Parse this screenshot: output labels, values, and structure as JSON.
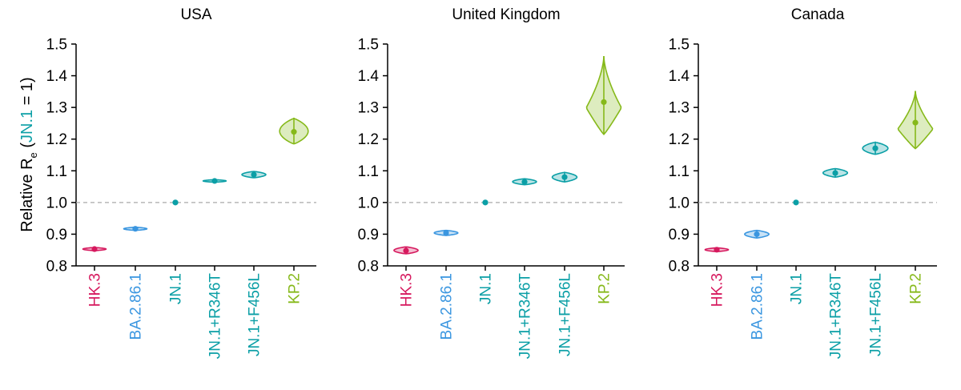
{
  "figure": {
    "ylabel_prefix": "Relative R",
    "ylabel_sub": "e",
    "ylabel_open": " (",
    "ylabel_ref": "JN.1",
    "ylabel_close": " = 1)"
  },
  "colors": {
    "HK.3": "#d6195e",
    "BA.2.86.1": "#3a96e0",
    "JN.1": "#0b9fa6",
    "JN.1+R346T": "#0b9fa6",
    "JN.1+F456L": "#0b9fa6",
    "KP.2": "#86b91a",
    "reference_line": "#aaaaaa",
    "axis": "#000000"
  },
  "chart_data": [
    {
      "type": "violin",
      "title": "USA",
      "categories": [
        "HK.3",
        "BA.2.86.1",
        "JN.1",
        "JN.1+R346T",
        "JN.1+F456L",
        "KP.2"
      ],
      "ylim": [
        0.8,
        1.5
      ],
      "yticks": [
        "0.8",
        "0.9",
        "1.0",
        "1.1",
        "1.2",
        "1.3",
        "1.4",
        "1.5"
      ],
      "reference_line": 1.0,
      "series": [
        {
          "name": "HK.3",
          "median": 0.853,
          "low": 0.848,
          "high": 0.858
        },
        {
          "name": "BA.2.86.1",
          "median": 0.917,
          "low": 0.912,
          "high": 0.922
        },
        {
          "name": "JN.1",
          "median": 1.0,
          "low": 1.0,
          "high": 1.0
        },
        {
          "name": "JN.1+R346T",
          "median": 1.068,
          "low": 1.064,
          "high": 1.072
        },
        {
          "name": "JN.1+F456L",
          "median": 1.088,
          "low": 1.078,
          "high": 1.098
        },
        {
          "name": "KP.2",
          "median": 1.223,
          "low": 1.185,
          "high": 1.265
        }
      ]
    },
    {
      "type": "violin",
      "title": "United Kingdom",
      "categories": [
        "HK.3",
        "BA.2.86.1",
        "JN.1",
        "JN.1+R346T",
        "JN.1+F456L",
        "KP.2"
      ],
      "ylim": [
        0.8,
        1.5
      ],
      "yticks": [
        "0.8",
        "0.9",
        "1.0",
        "1.1",
        "1.2",
        "1.3",
        "1.4",
        "1.5"
      ],
      "reference_line": 1.0,
      "series": [
        {
          "name": "HK.3",
          "median": 0.848,
          "low": 0.838,
          "high": 0.86
        },
        {
          "name": "BA.2.86.1",
          "median": 0.904,
          "low": 0.896,
          "high": 0.912
        },
        {
          "name": "JN.1",
          "median": 1.0,
          "low": 1.0,
          "high": 1.0
        },
        {
          "name": "JN.1+R346T",
          "median": 1.065,
          "low": 1.056,
          "high": 1.075
        },
        {
          "name": "JN.1+F456L",
          "median": 1.08,
          "low": 1.065,
          "high": 1.095
        },
        {
          "name": "KP.2",
          "median": 1.317,
          "low": 1.215,
          "high": 1.462
        }
      ]
    },
    {
      "type": "violin",
      "title": "Canada",
      "categories": [
        "HK.3",
        "BA.2.86.1",
        "JN.1",
        "JN.1+R346T",
        "JN.1+F456L",
        "KP.2"
      ],
      "ylim": [
        0.8,
        1.5
      ],
      "yticks": [
        "0.8",
        "0.9",
        "1.0",
        "1.1",
        "1.2",
        "1.3",
        "1.4",
        "1.5"
      ],
      "reference_line": 1.0,
      "series": [
        {
          "name": "HK.3",
          "median": 0.851,
          "low": 0.845,
          "high": 0.857
        },
        {
          "name": "BA.2.86.1",
          "median": 0.9,
          "low": 0.888,
          "high": 0.912
        },
        {
          "name": "JN.1",
          "median": 1.0,
          "low": 1.0,
          "high": 1.0
        },
        {
          "name": "JN.1+R346T",
          "median": 1.093,
          "low": 1.08,
          "high": 1.107
        },
        {
          "name": "JN.1+F456L",
          "median": 1.171,
          "low": 1.152,
          "high": 1.19
        },
        {
          "name": "KP.2",
          "median": 1.252,
          "low": 1.17,
          "high": 1.352
        }
      ]
    }
  ]
}
